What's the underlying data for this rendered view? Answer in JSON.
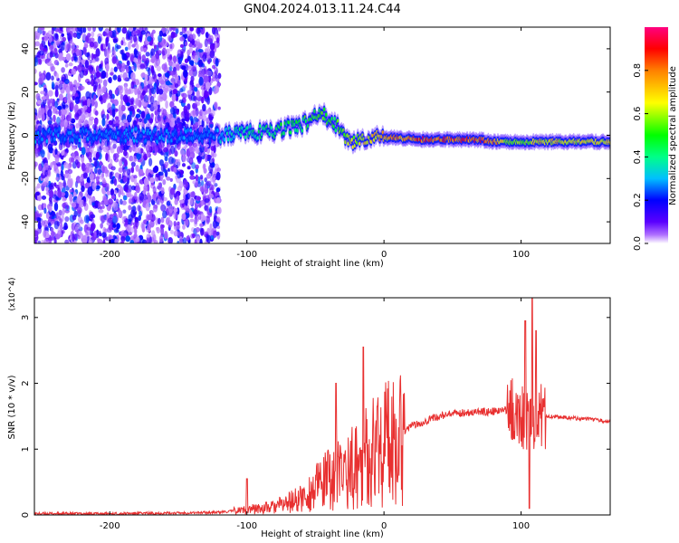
{
  "title": "GN04.2024.013.11.24.C44",
  "chart_data": [
    {
      "type": "heatmap",
      "xlabel": "Height of straight line (km)",
      "ylabel": "Frequency (Hz)",
      "xlim": [
        -255,
        165
      ],
      "ylim": [
        -50,
        50
      ],
      "xticks": [
        -200,
        -100,
        0,
        100
      ],
      "yticks": [
        -40,
        -20,
        0,
        20,
        40
      ],
      "colorbar": {
        "label": "Normalized spectral amplitude",
        "range": [
          0.0,
          1.0
        ],
        "ticks": [
          0.0,
          0.2,
          0.4,
          0.6,
          0.8
        ],
        "colormap": [
          "#ffffff",
          "#b070ff",
          "#5a00ff",
          "#0000ff",
          "#00bfff",
          "#00ff88",
          "#00ff00",
          "#ffff00",
          "#ff8000",
          "#ff0000",
          "#ff0080"
        ]
      },
      "ridge": [
        {
          "x": -120,
          "y": 0,
          "amp": 0.35
        },
        {
          "x": -100,
          "y": 1,
          "amp": 0.45
        },
        {
          "x": -80,
          "y": 2,
          "amp": 0.5
        },
        {
          "x": -60,
          "y": 5,
          "amp": 0.55
        },
        {
          "x": -45,
          "y": 10,
          "amp": 0.6
        },
        {
          "x": -35,
          "y": 5,
          "amp": 0.55
        },
        {
          "x": -25,
          "y": -3,
          "amp": 0.7
        },
        {
          "x": 0,
          "y": -1,
          "amp": 0.8
        },
        {
          "x": 30,
          "y": -2,
          "amp": 0.95
        },
        {
          "x": 70,
          "y": -2,
          "amp": 0.95
        },
        {
          "x": 80,
          "y": -3,
          "amp": 0.9
        },
        {
          "x": 95,
          "y": -3,
          "amp": 0.6
        },
        {
          "x": 110,
          "y": -3,
          "amp": 0.75
        },
        {
          "x": 165,
          "y": -3,
          "amp": 0.75
        }
      ]
    },
    {
      "type": "line",
      "xlabel": "Height of straight line (km)",
      "ylabel": "SNR (10 * v/v)",
      "yunit": "(x10^4)",
      "xlim": [
        -255,
        165
      ],
      "ylim": [
        0,
        3.3
      ],
      "xticks": [
        -200,
        -100,
        0,
        100
      ],
      "yticks": [
        0,
        1,
        2,
        3
      ],
      "color": "#e83030",
      "x": [
        -255,
        -200,
        -150,
        -120,
        -100,
        -80,
        -60,
        -40,
        -20,
        0,
        20,
        40,
        60,
        80,
        90,
        100,
        105,
        110,
        120,
        140,
        165
      ],
      "y": [
        0.02,
        0.02,
        0.03,
        0.04,
        0.08,
        0.12,
        0.25,
        0.55,
        0.75,
        1.1,
        1.35,
        1.5,
        1.56,
        1.57,
        1.6,
        1.55,
        1.4,
        1.5,
        1.5,
        1.47,
        1.42
      ],
      "spikes": [
        {
          "x": -100,
          "y": 0.55
        },
        {
          "x": -35,
          "y": 2.0
        },
        {
          "x": -15,
          "y": 2.55
        },
        {
          "x": -5,
          "y": 1.65
        },
        {
          "x": 103,
          "y": 2.95
        },
        {
          "x": 108,
          "y": 3.3
        },
        {
          "x": 111,
          "y": 2.8
        },
        {
          "x": 106,
          "y": 0.1
        }
      ]
    }
  ]
}
